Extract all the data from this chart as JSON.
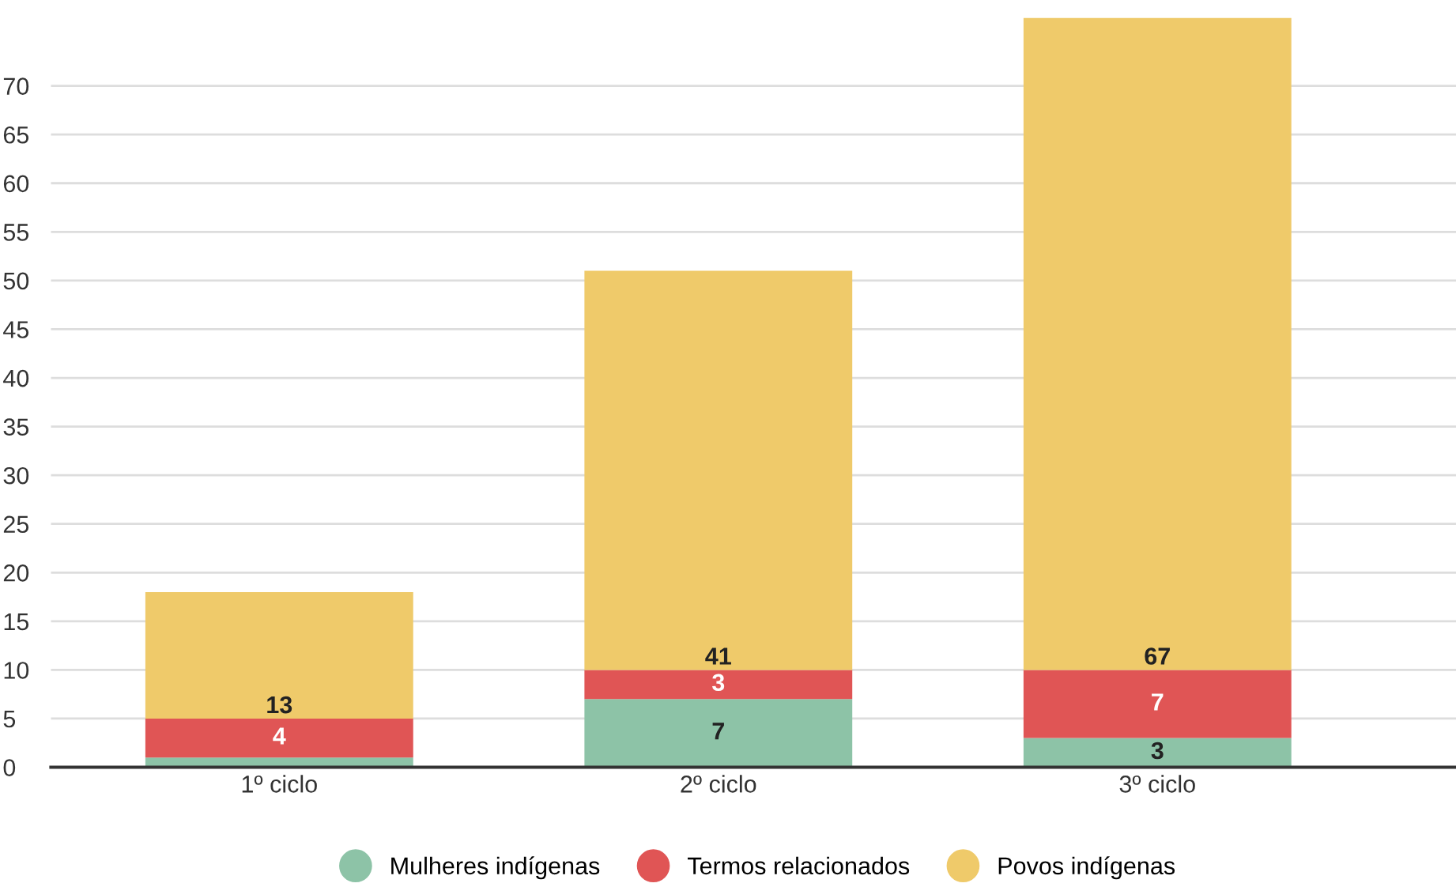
{
  "chart_data": {
    "type": "bar",
    "stacked": true,
    "categories": [
      "1º ciclo",
      "2º ciclo",
      "3º ciclo"
    ],
    "series": [
      {
        "name": "Mulheres indígenas",
        "color": "#8dc3a7",
        "values": [
          1,
          7,
          3
        ],
        "value_labels": [
          null,
          "7",
          "3"
        ]
      },
      {
        "name": "Termos relacionados",
        "color": "#e05555",
        "values": [
          4,
          3,
          7
        ],
        "value_labels": [
          "4",
          "3",
          "7"
        ]
      },
      {
        "name": "Povos indígenas",
        "color": "#efca6a",
        "values": [
          13,
          41,
          67
        ],
        "value_labels": [
          "13",
          "41",
          "67"
        ]
      }
    ],
    "ylim": [
      0,
      77
    ],
    "yticks": [
      0,
      5,
      10,
      15,
      20,
      25,
      30,
      35,
      40,
      45,
      50,
      55,
      60,
      65,
      70
    ],
    "grid": "y",
    "legend": "bottom"
  }
}
